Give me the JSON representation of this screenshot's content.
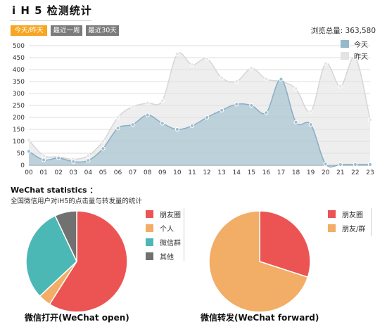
{
  "header": {
    "title": "i H 5 检测统计",
    "buttons": [
      "今天/昨天",
      "最近一周",
      "最近30天"
    ],
    "views_label": "浏览总量: 363,580"
  },
  "colors": {
    "active_button": "#f6a623",
    "idle_button": "#7b7b7b",
    "today": "#96b9cc",
    "yesterday": "#e3e3e3",
    "pie_friends_circle": "#ec5454",
    "pie_personal": "#f2ad66",
    "pie_group": "#4cb8b6",
    "pie_other": "#717171"
  },
  "section": {
    "title": "WeChat statistics ：",
    "subtitle": "全国微信用户对iH5的点击量与转发量的统计"
  },
  "chart_data": [
    {
      "type": "area",
      "x": [
        "00",
        "01",
        "02",
        "03",
        "04",
        "05",
        "06",
        "07",
        "08",
        "09",
        "10",
        "11",
        "12",
        "13",
        "14",
        "15",
        "16",
        "17",
        "18",
        "19",
        "20",
        "21",
        "22",
        "23"
      ],
      "ylim": [
        0,
        500
      ],
      "yticks": [
        0,
        50,
        100,
        150,
        200,
        250,
        300,
        350,
        400,
        450,
        500
      ],
      "grid": true,
      "legend_position": "top-right",
      "series": [
        {
          "name": "昨天",
          "color": "#e3e3e3",
          "values": [
            105,
            40,
            35,
            25,
            40,
            100,
            200,
            245,
            260,
            270,
            465,
            420,
            445,
            365,
            350,
            405,
            360,
            350,
            320,
            225,
            425,
            330,
            450,
            190
          ]
        },
        {
          "name": "今天",
          "color": "#96b9cc",
          "values": [
            58,
            22,
            30,
            15,
            20,
            70,
            155,
            170,
            210,
            175,
            150,
            165,
            200,
            230,
            255,
            250,
            220,
            360,
            180,
            170,
            5,
            3,
            3,
            3
          ]
        }
      ]
    },
    {
      "type": "pie",
      "title": "微信打开(WeChat open)",
      "labels": [
        "朋友圈",
        "个人",
        "微信群",
        "其他"
      ],
      "values": [
        59,
        4,
        30,
        7
      ],
      "colors": [
        "#ec5454",
        "#f2ad66",
        "#4cb8b6",
        "#717171"
      ]
    },
    {
      "type": "pie",
      "title": "微信转发(WeChat forward)",
      "labels": [
        "朋友圈",
        "朋友/群"
      ],
      "values": [
        30,
        70
      ],
      "colors": [
        "#ec5454",
        "#f2ad66"
      ]
    }
  ]
}
